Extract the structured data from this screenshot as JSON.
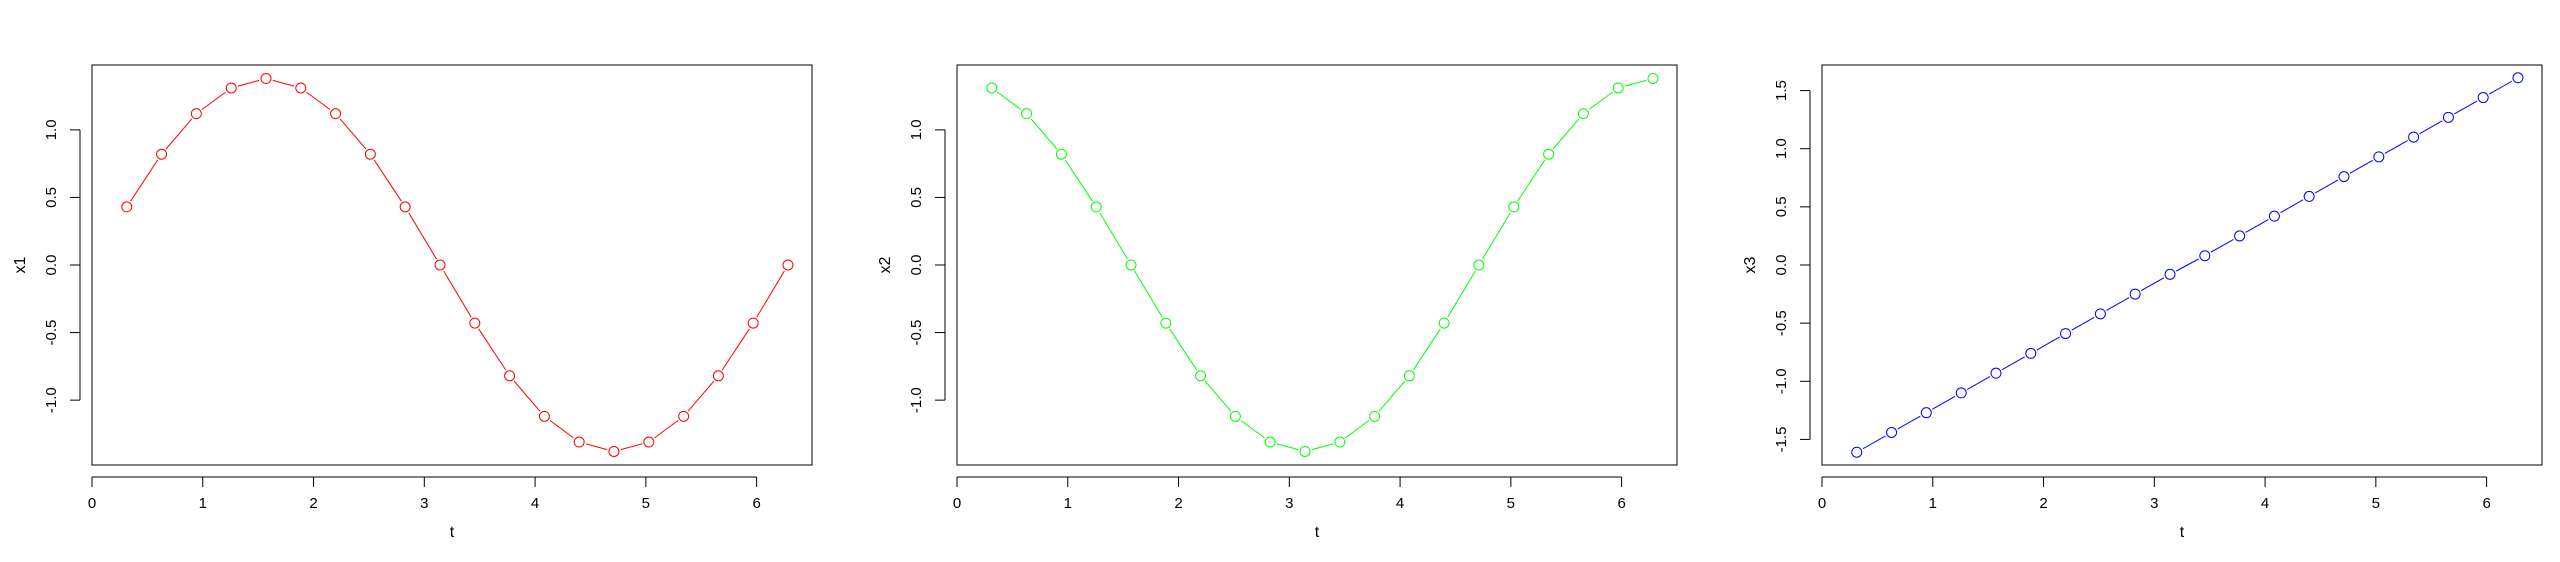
{
  "chart_data": [
    {
      "type": "line",
      "markers": "open-circle",
      "color": "#ff0000",
      "xlabel": "t",
      "ylabel": "x1",
      "xlim": [
        0,
        6.5
      ],
      "ylim": [
        -1.48,
        1.48
      ],
      "xticks": [
        0,
        1,
        2,
        3,
        4,
        5,
        6
      ],
      "xtick_labels": [
        "0",
        "1",
        "2",
        "3",
        "4",
        "5",
        "6"
      ],
      "yticks": [
        -1.0,
        -0.5,
        0.0,
        0.5,
        1.0
      ],
      "ytick_labels": [
        "-1.0",
        "-0.5",
        "0.0",
        "0.5",
        "1.0"
      ],
      "x": [
        0.314,
        0.628,
        0.942,
        1.257,
        1.571,
        1.885,
        2.199,
        2.513,
        2.827,
        3.142,
        3.456,
        3.77,
        4.084,
        4.398,
        4.712,
        5.027,
        5.341,
        5.655,
        5.969,
        6.283
      ],
      "y": [
        0.43,
        0.82,
        1.12,
        1.31,
        1.38,
        1.31,
        1.12,
        0.82,
        0.43,
        0.0,
        -0.43,
        -0.82,
        -1.12,
        -1.31,
        -1.38,
        -1.31,
        -1.12,
        -0.82,
        -0.43,
        0.0
      ]
    },
    {
      "type": "line",
      "markers": "open-circle",
      "color": "#00ff00",
      "xlabel": "t",
      "ylabel": "x2",
      "xlim": [
        0,
        6.5
      ],
      "ylim": [
        -1.48,
        1.48
      ],
      "xticks": [
        0,
        1,
        2,
        3,
        4,
        5,
        6
      ],
      "xtick_labels": [
        "0",
        "1",
        "2",
        "3",
        "4",
        "5",
        "6"
      ],
      "yticks": [
        -1.0,
        -0.5,
        0.0,
        0.5,
        1.0
      ],
      "ytick_labels": [
        "-1.0",
        "-0.5",
        "0.0",
        "0.5",
        "1.0"
      ],
      "x": [
        0.314,
        0.628,
        0.942,
        1.257,
        1.571,
        1.885,
        2.199,
        2.513,
        2.827,
        3.142,
        3.456,
        3.77,
        4.084,
        4.398,
        4.712,
        5.027,
        5.341,
        5.655,
        5.969,
        6.283
      ],
      "y": [
        1.31,
        1.12,
        0.82,
        0.43,
        0.0,
        -0.43,
        -0.82,
        -1.12,
        -1.31,
        -1.38,
        -1.31,
        -1.12,
        -0.82,
        -0.43,
        0.0,
        0.43,
        0.82,
        1.12,
        1.31,
        1.38
      ]
    },
    {
      "type": "line",
      "markers": "open-circle",
      "color": "#0000ff",
      "xlabel": "t",
      "ylabel": "x3",
      "xlim": [
        0,
        6.5
      ],
      "ylim": [
        -1.72,
        1.72
      ],
      "xticks": [
        0,
        1,
        2,
        3,
        4,
        5,
        6
      ],
      "xtick_labels": [
        "0",
        "1",
        "2",
        "3",
        "4",
        "5",
        "6"
      ],
      "yticks": [
        -1.5,
        -1.0,
        -0.5,
        0.0,
        0.5,
        1.0,
        1.5
      ],
      "ytick_labels": [
        "-1.5",
        "-1.0",
        "-0.5",
        "0.0",
        "0.5",
        "1.0",
        "1.5"
      ],
      "x": [
        0.314,
        0.628,
        0.942,
        1.257,
        1.571,
        1.885,
        2.199,
        2.513,
        2.827,
        3.142,
        3.456,
        3.77,
        4.084,
        4.398,
        4.712,
        5.027,
        5.341,
        5.655,
        5.969,
        6.283
      ],
      "y": [
        -1.61,
        -1.44,
        -1.27,
        -1.1,
        -0.93,
        -0.76,
        -0.59,
        -0.42,
        -0.25,
        -0.08,
        0.08,
        0.25,
        0.42,
        0.59,
        0.76,
        0.93,
        1.1,
        1.27,
        1.44,
        1.61
      ]
    }
  ]
}
